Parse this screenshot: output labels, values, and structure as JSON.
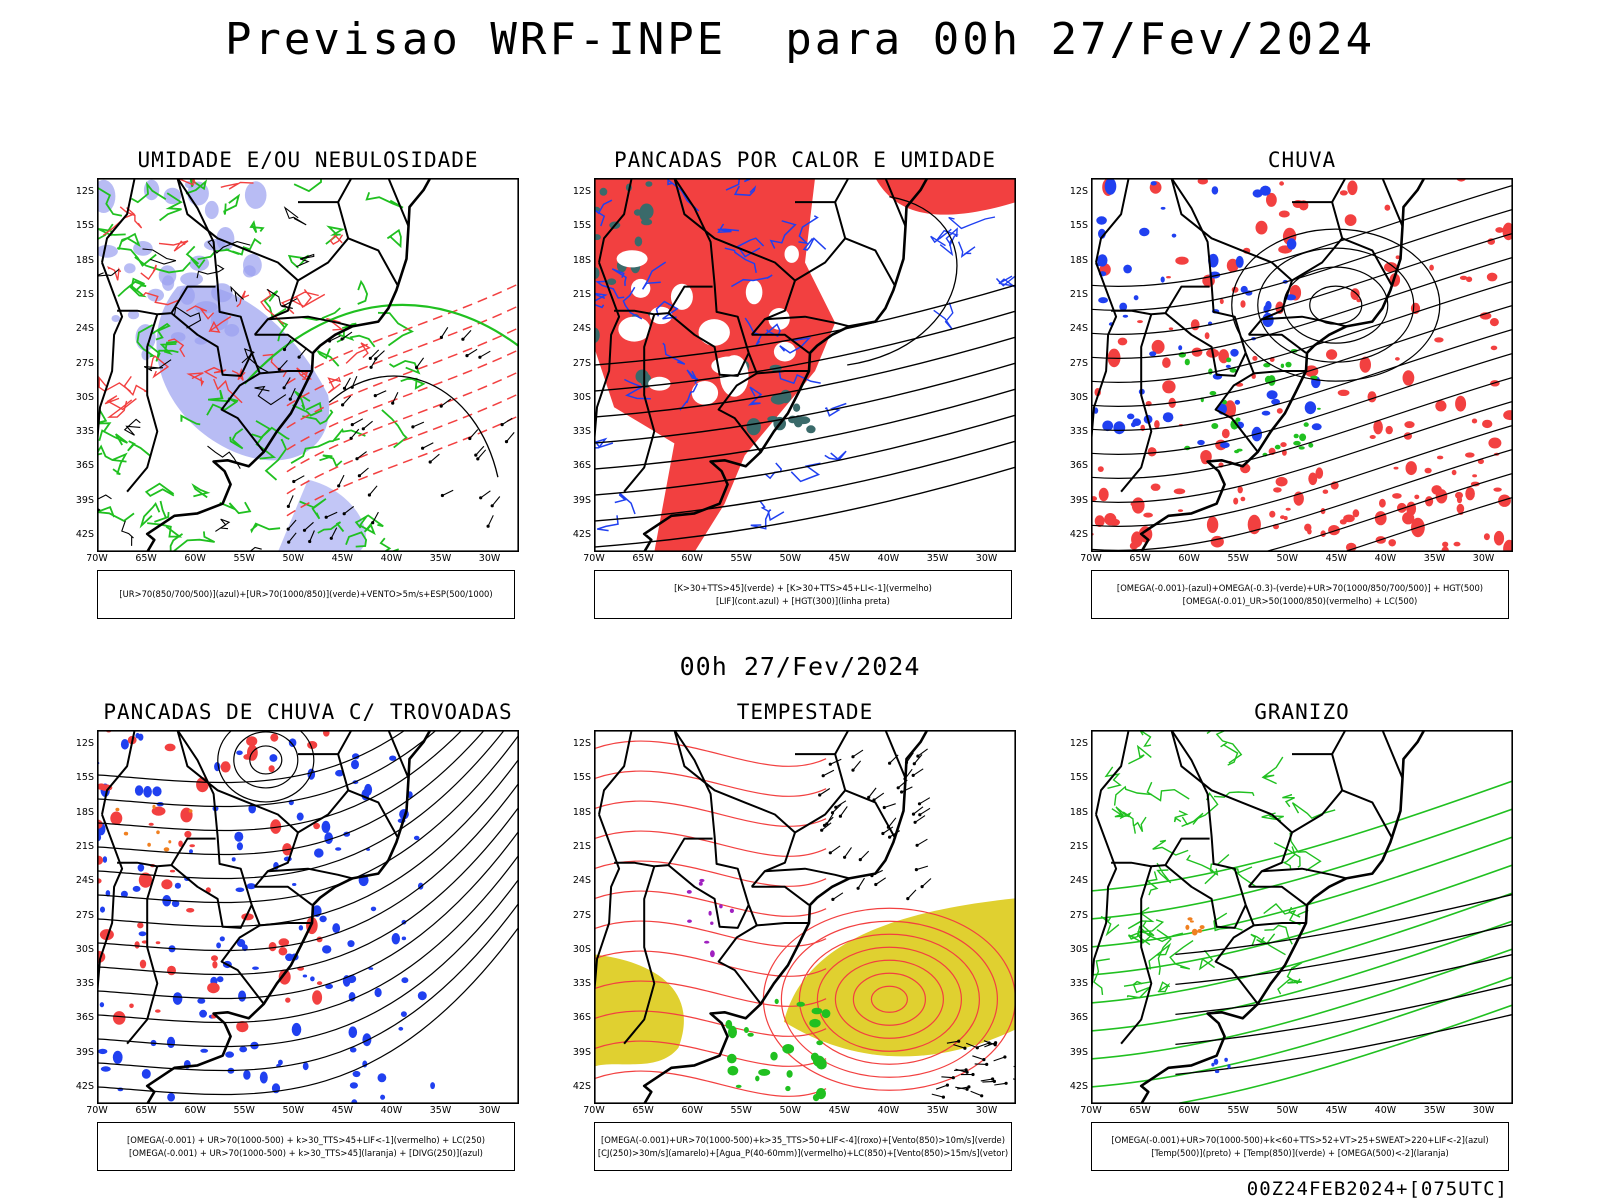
{
  "title": "Previsao WRF-INPE  para 00h 27/Fev/2024",
  "mid_title": "00h 27/Fev/2024",
  "footer": "00Z24FEB2024+[075UTC]",
  "lat_ticks": [
    "12S",
    "15S",
    "18S",
    "21S",
    "24S",
    "27S",
    "30S",
    "33S",
    "36S",
    "39S",
    "42S"
  ],
  "lon_ticks": [
    "70W",
    "65W",
    "60W",
    "55W",
    "50W",
    "45W",
    "40W",
    "35W",
    "30W"
  ],
  "colors": {
    "red": "#f24040",
    "blue": "#2040f0",
    "green": "#20c020",
    "lavender": "#9aa0f0",
    "yellow": "#e0d030",
    "teal": "#3a6a6a",
    "purple": "#a020c0",
    "orange": "#f08020"
  },
  "panels": [
    {
      "title": "UMIDADE E/OU NEBULOSIDADE",
      "legend": [
        "[UR>70(850/700/500)](azul)+[UR>70(1000/850)](verde)+VENTO>5m/s+ESP(500/1000)"
      ]
    },
    {
      "title": "PANCADAS POR CALOR E UMIDADE",
      "legend": [
        "[K>30+TTS>45](verde) + [K>30+TTS>45+LI<-1](vermelho)",
        "[LIF](cont.azul) + [HGT(300)](linha preta)"
      ]
    },
    {
      "title": "CHUVA",
      "legend": [
        "[OMEGA(-0.001)-(azul)+OMEGA(-0.3)-(verde)+UR>70(1000/850/700/500)] + HGT(500)",
        "[OMEGA(-0.01)_UR>50(1000/850)(vermelho) + LC(500)"
      ]
    },
    {
      "title": "PANCADAS DE CHUVA C/ TROVOADAS",
      "legend": [
        "[OMEGA(-0.001) + UR>70(1000-500) + k>30_TTS>45+LIF<-1](vermelho) + LC(250)",
        "[OMEGA(-0.001) + UR>70(1000-500) + k>30_TTS>45](laranja) + [DIVG(250)](azul)"
      ]
    },
    {
      "title": "TEMPESTADE",
      "legend": [
        "[OMEGA(-0.001)+UR>70(1000-500)+k>35_TTS>50+LIF<-4](roxo)+[Vento(850)>10m/s](verde)",
        "[CJ(250)>30m/s](amarelo)+[Agua_P(40-60mm)](vermelho)+LC(850)+[Vento(850)>15m/s](vetor)"
      ]
    },
    {
      "title": "GRANIZO",
      "legend": [
        "[OMEGA(-0.001)+UR>70(1000-500)+k<60+TTS>52+VT>25+SWEAT>220+LIF<-2](azul)",
        "[Temp(500)](preto) + [Temp(850)](verde) + [OMEGA(500)<-2](laranja)"
      ]
    }
  ]
}
